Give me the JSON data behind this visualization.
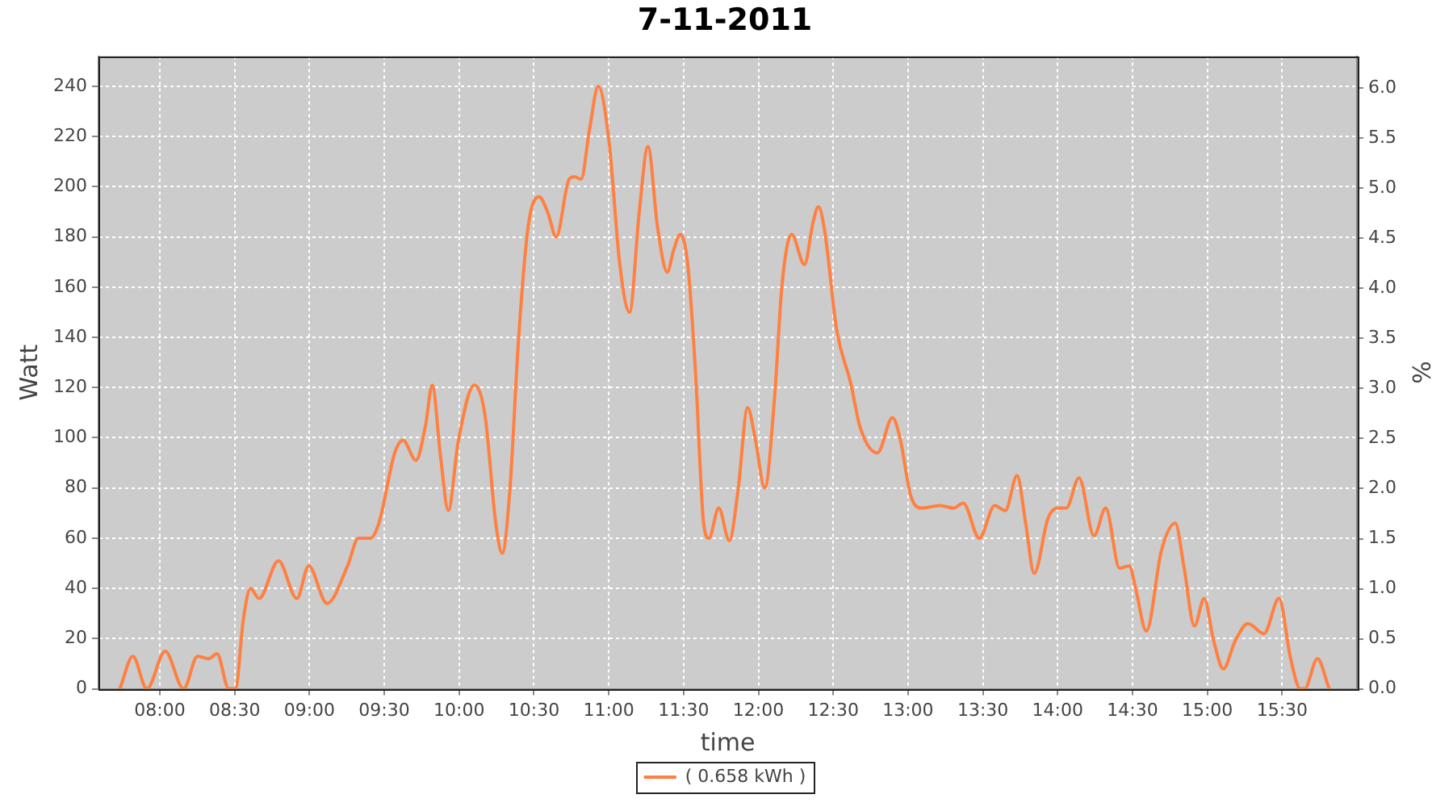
{
  "chart_data": {
    "type": "line",
    "title": "7-11-2011",
    "xlabel": "time",
    "ylabel": "Watt",
    "y2label": "%",
    "x": [
      7.733,
      7.82,
      7.913,
      8.036,
      8.159,
      8.252,
      8.324,
      8.382,
      8.461,
      8.505,
      8.559,
      8.606,
      8.663,
      8.793,
      8.916,
      8.995,
      9.117,
      9.255,
      9.327,
      9.406,
      9.464,
      9.57,
      9.625,
      9.712,
      9.776,
      9.82,
      9.877,
      9.928,
      9.993,
      10.101,
      10.173,
      10.245,
      10.288,
      10.339,
      10.397,
      10.461,
      10.534,
      10.591,
      10.649,
      10.735,
      10.771,
      10.815,
      10.872,
      10.93,
      11.002,
      11.074,
      11.139,
      11.204,
      11.262,
      11.326,
      11.391,
      11.435,
      11.478,
      11.528,
      11.58,
      11.634,
      11.67,
      11.735,
      11.806,
      11.864,
      11.928,
      11.978,
      12.043,
      12.108,
      12.158,
      12.222,
      12.308,
      12.366,
      12.401,
      12.444,
      12.523,
      12.616,
      12.681,
      12.796,
      12.896,
      12.946,
      13.018,
      13.09,
      13.211,
      13.305,
      13.369,
      13.477,
      13.579,
      13.65,
      13.729,
      13.786,
      13.843,
      13.936,
      14.0,
      14.057,
      14.143,
      14.243,
      14.321,
      14.414,
      14.479,
      14.521,
      14.593,
      14.693,
      14.786,
      14.843,
      14.914,
      14.979,
      15.043,
      15.107,
      15.186,
      15.271,
      15.379,
      15.479,
      15.557,
      15.621,
      15.65,
      15.736,
      15.814
    ],
    "series": [
      {
        "name": "( 0.658 kWh )",
        "color": "#ff8040",
        "values": [
          0,
          13,
          0,
          15,
          0,
          13,
          12,
          14,
          0,
          0,
          28,
          40,
          36,
          51,
          36,
          49,
          34,
          49,
          60,
          60,
          66,
          94,
          99,
          91,
          105,
          121,
          92,
          71,
          98,
          121,
          109,
          66,
          54,
          79,
          139,
          184,
          196,
          190,
          180,
          203,
          204,
          203,
          223,
          240,
          218,
          169,
          150,
          190,
          216,
          184,
          166,
          175,
          181,
          169,
          126,
          66,
          60,
          72,
          59,
          79,
          112,
          100,
          80,
          116,
          161,
          181,
          169,
          186,
          192,
          182,
          143,
          122,
          104,
          94,
          108,
          100,
          77,
          72,
          73,
          72,
          74,
          60,
          73,
          71,
          85,
          66,
          46,
          68,
          72,
          72,
          84,
          61,
          72,
          48,
          49,
          40,
          23,
          55,
          66,
          49,
          25,
          36,
          19,
          8,
          19,
          26,
          22,
          36,
          12,
          0,
          0,
          12,
          0
        ]
      }
    ],
    "xlim": [
      7.59,
      16.0
    ],
    "xticks": [
      {
        "value": 8,
        "label": "08:00"
      },
      {
        "value": 8.5,
        "label": "08:30"
      },
      {
        "value": 9,
        "label": "09:00"
      },
      {
        "value": 9.5,
        "label": "09:30"
      },
      {
        "value": 10,
        "label": "10:00"
      },
      {
        "value": 10.5,
        "label": "10:30"
      },
      {
        "value": 11,
        "label": "11:00"
      },
      {
        "value": 11.5,
        "label": "11:30"
      },
      {
        "value": 12,
        "label": "12:00"
      },
      {
        "value": 12.5,
        "label": "12:30"
      },
      {
        "value": 13,
        "label": "13:00"
      },
      {
        "value": 13.5,
        "label": "13:30"
      },
      {
        "value": 14,
        "label": "14:00"
      },
      {
        "value": 14.5,
        "label": "14:30"
      },
      {
        "value": 15,
        "label": "15:00"
      },
      {
        "value": 15.5,
        "label": "15:30"
      }
    ],
    "ylim": [
      0,
      252
    ],
    "yticks": [
      0,
      20,
      40,
      60,
      80,
      100,
      120,
      140,
      160,
      180,
      200,
      220,
      240
    ],
    "y2lim": [
      0,
      6.32
    ],
    "y2ticks": [
      {
        "value": 0,
        "label": "0.0"
      },
      0.5,
      {
        "value": 1,
        "label": "1.0"
      },
      1.5,
      {
        "value": 2,
        "label": "2.0"
      },
      2.5,
      {
        "value": 3,
        "label": "3.0"
      },
      3.5,
      {
        "value": 4,
        "label": "4.0"
      },
      4.5,
      {
        "value": 5,
        "label": "5.0"
      },
      5.5,
      {
        "value": 6,
        "label": "6.0"
      }
    ],
    "grid": true,
    "legend": "bottom"
  }
}
